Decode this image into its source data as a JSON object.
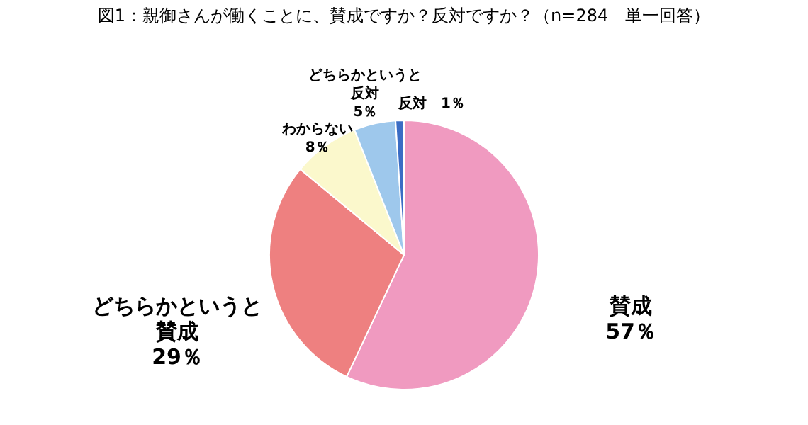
{
  "chart_data": {
    "type": "pie",
    "title": "図1：親御さんが働くことに、賛成ですか？反対ですか？（n=284　単一回答）",
    "categories": [
      "賛成",
      "どちらかというと賛成",
      "わからない",
      "どちらかというと反対",
      "反対"
    ],
    "values": [
      57,
      29,
      8,
      5,
      1
    ],
    "value_labels": [
      "57％",
      "29％",
      "8％",
      "5％",
      "1％"
    ],
    "colors": [
      "#f09ac0",
      "#ee8080",
      "#fbf8cc",
      "#9ec8ec",
      "#3a6cc4"
    ],
    "legend": false
  }
}
